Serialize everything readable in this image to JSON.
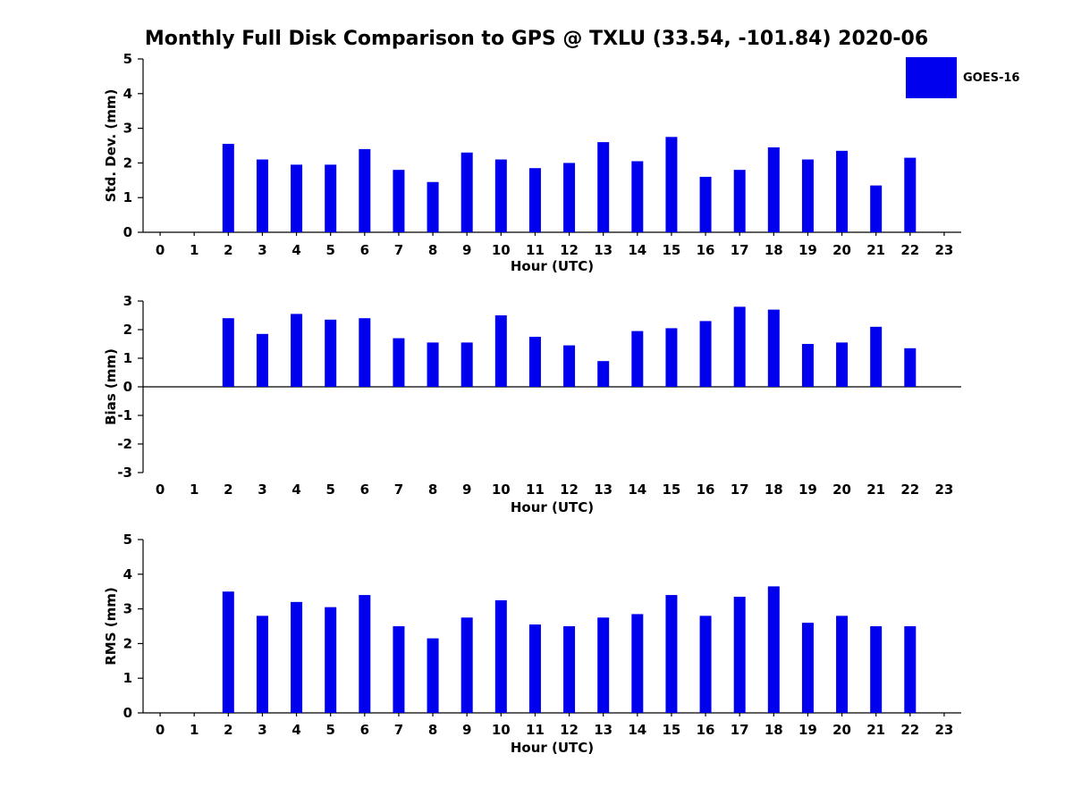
{
  "title": "Monthly Full Disk Comparison to GPS @ TXLU (33.54, -101.84) 2020-06",
  "legend": {
    "label": "GOES-16",
    "color": "#0000ee",
    "position": "top-right"
  },
  "chart_data": [
    {
      "type": "bar",
      "title": "Std. Dev. vs Hour",
      "series_name": "GOES-16",
      "color": "#0000ee",
      "xlabel": "Hour (UTC)",
      "ylabel": "Std. Dev. (mm)",
      "ylim": [
        0,
        5
      ],
      "yticks": [
        0,
        1,
        2,
        3,
        4,
        5
      ],
      "grid": false,
      "categories": [
        "0",
        "1",
        "2",
        "3",
        "4",
        "5",
        "6",
        "7",
        "8",
        "9",
        "10",
        "11",
        "12",
        "13",
        "14",
        "15",
        "16",
        "17",
        "18",
        "19",
        "20",
        "21",
        "22",
        "23"
      ],
      "values": [
        null,
        null,
        2.55,
        2.1,
        1.95,
        1.95,
        2.4,
        1.8,
        1.45,
        2.3,
        2.1,
        1.85,
        2.0,
        2.6,
        2.05,
        2.75,
        1.6,
        1.8,
        2.45,
        2.1,
        2.35,
        1.35,
        2.15,
        null
      ]
    },
    {
      "type": "bar",
      "title": "Bias vs Hour",
      "series_name": "GOES-16",
      "color": "#0000ee",
      "xlabel": "Hour (UTC)",
      "ylabel": "Bias (mm)",
      "ylim": [
        -3,
        3
      ],
      "yticks": [
        -3,
        -2,
        -1,
        0,
        1,
        2,
        3
      ],
      "grid": false,
      "categories": [
        "0",
        "1",
        "2",
        "3",
        "4",
        "5",
        "6",
        "7",
        "8",
        "9",
        "10",
        "11",
        "12",
        "13",
        "14",
        "15",
        "16",
        "17",
        "18",
        "19",
        "20",
        "21",
        "22",
        "23"
      ],
      "values": [
        null,
        null,
        2.4,
        1.85,
        2.55,
        2.35,
        2.4,
        1.7,
        1.55,
        1.55,
        2.5,
        1.75,
        1.45,
        0.9,
        1.95,
        2.05,
        2.3,
        2.8,
        2.7,
        1.5,
        1.55,
        2.1,
        1.35,
        null
      ]
    },
    {
      "type": "bar",
      "title": "RMS vs Hour",
      "series_name": "GOES-16",
      "color": "#0000ee",
      "xlabel": "Hour (UTC)",
      "ylabel": "RMS (mm)",
      "ylim": [
        0,
        5
      ],
      "yticks": [
        0,
        1,
        2,
        3,
        4,
        5
      ],
      "grid": false,
      "categories": [
        "0",
        "1",
        "2",
        "3",
        "4",
        "5",
        "6",
        "7",
        "8",
        "9",
        "10",
        "11",
        "12",
        "13",
        "14",
        "15",
        "16",
        "17",
        "18",
        "19",
        "20",
        "21",
        "22",
        "23"
      ],
      "values": [
        null,
        null,
        3.5,
        2.8,
        3.2,
        3.05,
        3.4,
        2.5,
        2.15,
        2.75,
        3.25,
        2.55,
        2.5,
        2.75,
        2.85,
        3.4,
        2.8,
        3.35,
        3.65,
        2.6,
        2.8,
        2.5,
        2.5,
        null
      ]
    }
  ]
}
